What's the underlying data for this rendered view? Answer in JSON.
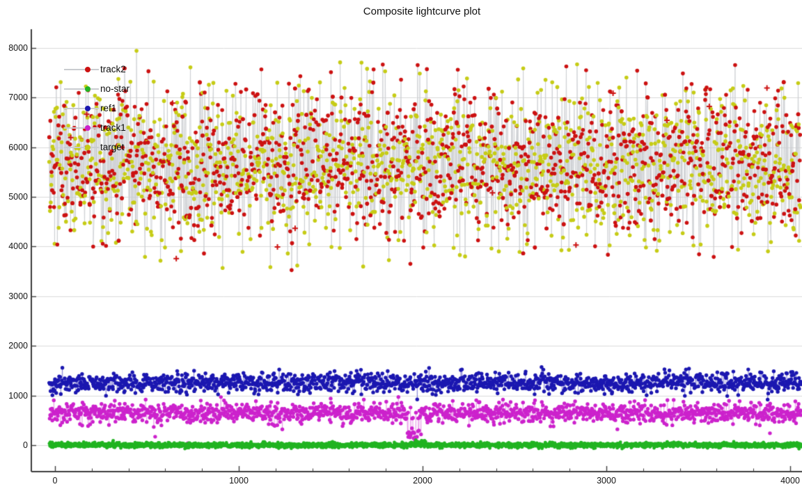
{
  "page": {
    "background": "#ffffff"
  },
  "chart_data": {
    "type": "scatter",
    "title": "Composite lightcurve plot",
    "xlabel": "",
    "ylabel": "",
    "xlim": [
      -130,
      4065
    ],
    "ylim": [
      -535,
      8380
    ],
    "xticks": [
      0,
      1000,
      2000,
      3000,
      4000
    ],
    "xtick_minor_step": 200,
    "yticks": [
      0,
      1000,
      2000,
      3000,
      4000,
      5000,
      6000,
      7000,
      8000
    ],
    "grid": {
      "horizontal": true,
      "vertical": false,
      "color": "#dadada"
    },
    "axis_color": "#3c3c3c",
    "tick_label_color": "#141414",
    "legend": {
      "position": "upper-left",
      "sample_line_color": "#c9ccd0",
      "items": [
        {
          "label": "track2",
          "color": "#cc1111"
        },
        {
          "label": "no-star",
          "color": "#22b422"
        },
        {
          "label": "ref1",
          "color": "#1b17b0"
        },
        {
          "label": "track1",
          "color": "#cc22cc"
        },
        {
          "label": "target",
          "color": "#c6cc16"
        }
      ]
    },
    "series": [
      {
        "name": "track2",
        "marker": "circle",
        "marker_color": "#cc1111",
        "line_color": "#c9ccd0",
        "n": 1300,
        "x_range": [
          -30,
          4055
        ],
        "mean": 5680,
        "sd": 760,
        "clip": [
          3520,
          7720
        ],
        "plus_markers": {
          "n": 12,
          "y_range": [
            3600,
            7300
          ]
        }
      },
      {
        "name": "target",
        "marker": "circle",
        "marker_color": "#c6cc16",
        "line_color": "#c9ccd0",
        "n": 1300,
        "x_range": [
          -30,
          4055
        ],
        "mean": 5600,
        "sd": 790,
        "clip": [
          3560,
          7980
        ]
      },
      {
        "name": "ref1",
        "marker": "circle",
        "marker_color": "#1b17b0",
        "line_color": "#1b17b0",
        "n": 1500,
        "x_range": [
          -30,
          4058
        ],
        "mean": 1258,
        "sd": 102,
        "clip": [
          890,
          1780
        ]
      },
      {
        "name": "track1",
        "marker": "circle",
        "marker_color": "#cc22cc",
        "line_color": "#cc22cc",
        "n": 1500,
        "x_range": [
          -30,
          4058
        ],
        "mean": 648,
        "sd": 98,
        "clip": [
          130,
          990
        ],
        "anomaly": {
          "x": [
            1912,
            1992
          ],
          "offset": -430,
          "sd": 85,
          "frac": 0.7
        },
        "outliers": [
          [
            545,
            170
          ],
          [
            723,
            40
          ],
          [
            1500,
            940
          ],
          [
            3060,
            320
          ],
          [
            3890,
            240
          ]
        ]
      },
      {
        "name": "no-star",
        "marker": "circle",
        "marker_color": "#22b422",
        "line_color": "#22b422",
        "n": 2600,
        "x_range": [
          -30,
          4060
        ],
        "mean": 2,
        "sd": 24,
        "clip": [
          -130,
          135
        ],
        "anomaly": {
          "x": [
            1935,
            2020
          ],
          "offset": 55,
          "sd": 28,
          "frac": 0.45
        }
      }
    ]
  }
}
